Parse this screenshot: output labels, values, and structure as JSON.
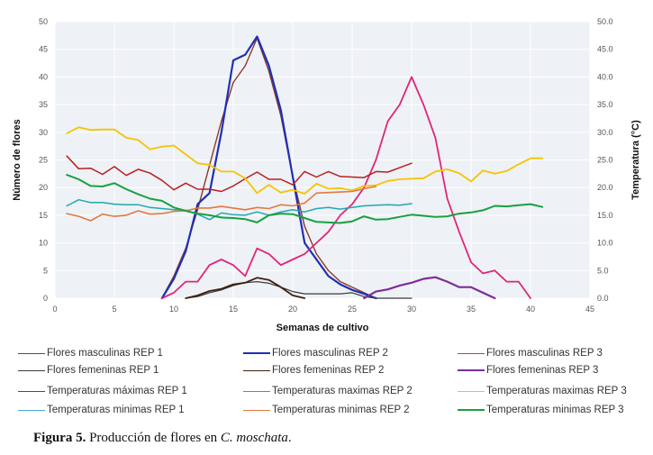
{
  "chart_data": {
    "type": "line",
    "xlabel": "Semanas de cultivo",
    "ylabel_left": "Número de flores",
    "ylabel_right": "Temperatura (°C)",
    "xlim": [
      0,
      45
    ],
    "xticks": [
      0,
      5,
      10,
      15,
      20,
      25,
      30,
      35,
      40,
      45
    ],
    "ylim_left": [
      0,
      50
    ],
    "yticks_left": [
      0,
      5,
      10,
      15,
      20,
      25,
      30,
      35,
      40,
      45,
      50
    ],
    "ylim_right": [
      0,
      50
    ],
    "yticks_right": [
      "0.0",
      "5.0",
      "10.0",
      "15.0",
      "20.0",
      "25.0",
      "30.0",
      "35.0",
      "40.0",
      "45.0",
      "50.0"
    ],
    "grid": true,
    "legend_placement": "bottom",
    "series": [
      {
        "name": "Flores masculinas REP 1",
        "color": "#8b3a2a",
        "width": 1.4,
        "x": [
          9,
          10,
          11,
          12,
          13,
          14,
          15,
          16,
          17,
          18,
          19,
          20,
          21,
          22,
          23,
          24,
          25,
          26,
          27
        ],
        "y": [
          0,
          4,
          9,
          16,
          24,
          32,
          39,
          42,
          47,
          41,
          33,
          22,
          13,
          8,
          5,
          3,
          2,
          1,
          0
        ]
      },
      {
        "name": "Flores masculinas REP 2",
        "color": "#1f2fb5",
        "width": 2.2,
        "x": [
          9,
          10,
          11,
          12,
          13,
          14,
          15,
          16,
          17,
          18,
          19,
          20,
          21,
          22,
          23,
          24,
          25,
          26,
          27
        ],
        "y": [
          0,
          3.5,
          8.5,
          17,
          19,
          30,
          43,
          44,
          47.3,
          42,
          34,
          22,
          10,
          7,
          4,
          2.5,
          1.5,
          0.8,
          0
        ]
      },
      {
        "name": "Flores masculinas REP 3",
        "color": "#e0257a",
        "width": 1.8,
        "x": [
          9,
          10,
          11,
          12,
          13,
          14,
          15,
          16,
          17,
          18,
          19,
          20,
          21,
          22,
          23,
          24,
          25,
          26,
          27,
          28,
          29,
          30,
          31,
          32,
          33,
          34,
          35,
          36,
          37,
          38,
          39,
          40
        ],
        "y": [
          0,
          1,
          3,
          3,
          6,
          7,
          6,
          4,
          9,
          8,
          6,
          7,
          8,
          10,
          12,
          15,
          17,
          20,
          25,
          32,
          35,
          40,
          35,
          29,
          18,
          12,
          6.5,
          4.5,
          5,
          3,
          3,
          0
        ]
      },
      {
        "name": "Flores femeninas REP 1",
        "color": "#3a3a3a",
        "width": 1.2,
        "x": [
          11,
          12,
          13,
          14,
          15,
          16,
          17,
          18,
          19,
          20,
          21,
          22,
          23,
          24,
          25,
          26,
          27,
          28,
          29,
          30
        ],
        "y": [
          0,
          0.3,
          1,
          1.5,
          2.3,
          2.8,
          3,
          2.7,
          2,
          1.2,
          0.8,
          0.8,
          0.8,
          0.8,
          1,
          0.3,
          0,
          0,
          0,
          0
        ]
      },
      {
        "name": "Flores femeninas REP 2",
        "color": "#3e2010",
        "width": 1.8,
        "x": [
          11,
          12,
          13,
          14,
          15,
          16,
          17,
          18,
          19,
          20,
          21
        ],
        "y": [
          0,
          0.5,
          1.3,
          1.7,
          2.5,
          2.8,
          3.7,
          3.3,
          2,
          0.5,
          0
        ]
      },
      {
        "name": "Flores femeninas REP 3",
        "color": "#7b2e99",
        "width": 2.2,
        "x": [
          26,
          27,
          28,
          29,
          30,
          31,
          32,
          33,
          34,
          35,
          36,
          37
        ],
        "y": [
          0,
          1.2,
          1.6,
          2.3,
          2.8,
          3.5,
          3.8,
          3,
          2,
          2,
          1,
          0
        ]
      },
      {
        "name": "Temperaturas máximas REP 1",
        "color": "#b82020",
        "width": 1.5,
        "x": [
          1,
          2,
          3,
          4,
          5,
          6,
          7,
          8,
          9,
          10,
          11,
          12,
          13,
          14,
          15,
          16,
          17,
          18,
          19,
          20,
          21,
          22,
          23,
          24,
          25,
          26,
          27,
          28,
          29,
          30
        ],
        "y": [
          25.7,
          23.4,
          23.5,
          22.4,
          23.8,
          22.2,
          23.3,
          22.6,
          21.3,
          19.6,
          20.8,
          19.7,
          19.7,
          19.3,
          20.3,
          21.6,
          22.8,
          21.5,
          21.5,
          20.5,
          22.9,
          21.9,
          22.9,
          22.0,
          21.9,
          21.8,
          22.9,
          22.8,
          23.6,
          24.4
        ]
      },
      {
        "name": "Temperaturas maximas REP 2",
        "color": "#20a8b0",
        "width": 1.5,
        "x": [
          1,
          2,
          3,
          4,
          5,
          6,
          7,
          8,
          9,
          10,
          11,
          12,
          13,
          14,
          15,
          16,
          17,
          18,
          19,
          20,
          21,
          22,
          23,
          24,
          25,
          26,
          27,
          28,
          29,
          30
        ],
        "y": [
          16.7,
          17.8,
          17.3,
          17.3,
          17.0,
          16.9,
          16.9,
          16.4,
          16.2,
          16.0,
          15.9,
          15.2,
          14.2,
          15.4,
          15.1,
          15.0,
          15.6,
          15.0,
          15.6,
          16.0,
          15.6,
          16.2,
          16.4,
          16.1,
          16.4,
          16.7,
          16.8,
          16.9,
          16.8,
          17.1
        ]
      },
      {
        "name": "Temperaturas maximas REP 3",
        "color": "#f5c400",
        "width": 1.8,
        "x": [
          1,
          2,
          3,
          4,
          5,
          6,
          7,
          8,
          9,
          10,
          11,
          12,
          13,
          14,
          15,
          16,
          17,
          18,
          19,
          20,
          21,
          22,
          23,
          24,
          25,
          26,
          27,
          28,
          29,
          30,
          31,
          32,
          33,
          34,
          35,
          36,
          37,
          38,
          39,
          40,
          41
        ],
        "y": [
          29.8,
          30.9,
          30.4,
          30.5,
          30.5,
          29.0,
          28.6,
          26.9,
          27.4,
          27.6,
          26.0,
          24.4,
          24.1,
          22.9,
          22.9,
          21.7,
          19.0,
          20.5,
          19.1,
          19.6,
          18.9,
          20.7,
          19.8,
          19.9,
          19.5,
          20.3,
          20.4,
          21.2,
          21.5,
          21.6,
          21.7,
          22.9,
          23.3,
          22.6,
          21.1,
          23.1,
          22.5,
          23.0,
          24.2,
          25.3,
          25.3
        ]
      },
      {
        "name": "Temperaturas minimas REP 1",
        "color": "#4aaad8",
        "width": 1.3,
        "x": [],
        "y": []
      },
      {
        "name": "Temperaturas minimas REP 2",
        "color": "#e07a40",
        "width": 1.6,
        "x": [
          1,
          2,
          3,
          4,
          5,
          6,
          7,
          8,
          9,
          10,
          11,
          12,
          13,
          14,
          15,
          16,
          17,
          18,
          19,
          20,
          21,
          22,
          23,
          24,
          25,
          26,
          27
        ],
        "y": [
          15.3,
          14.8,
          14.0,
          15.2,
          14.8,
          15.0,
          15.8,
          15.2,
          15.3,
          15.7,
          15.8,
          16.3,
          16.3,
          16.6,
          16.3,
          16.0,
          16.4,
          16.2,
          16.9,
          16.7,
          17.2,
          19.0,
          19.1,
          19.2,
          19.3,
          19.8,
          20.2
        ]
      },
      {
        "name": "Temperaturas minimas REP 3",
        "color": "#18a040",
        "width": 2.0,
        "x": [
          1,
          2,
          3,
          4,
          5,
          6,
          7,
          8,
          9,
          10,
          11,
          12,
          13,
          14,
          15,
          16,
          17,
          18,
          19,
          20,
          21,
          22,
          23,
          24,
          25,
          26,
          27,
          28,
          29,
          30,
          31,
          32,
          33,
          34,
          35,
          36,
          37,
          38,
          39,
          40,
          41
        ],
        "y": [
          22.3,
          21.5,
          20.3,
          20.2,
          20.8,
          19.7,
          18.8,
          18.0,
          17.6,
          16.4,
          15.8,
          15.3,
          15.0,
          14.6,
          14.5,
          14.3,
          13.7,
          15.0,
          15.3,
          15.2,
          14.5,
          13.8,
          13.7,
          13.6,
          13.9,
          14.8,
          14.2,
          14.3,
          14.7,
          15.1,
          14.9,
          14.7,
          14.8,
          15.3,
          15.5,
          15.9,
          16.7,
          16.6,
          16.8,
          17.0,
          16.5
        ]
      }
    ]
  },
  "legend": [
    {
      "label": "Flores masculinas REP 1",
      "color": "#8b3a2a",
      "width": 1.4
    },
    {
      "label": "Flores masculinas REP 2",
      "color": "#1f2fb5",
      "width": 2.2
    },
    {
      "label": "Flores masculinas REP 3",
      "color": "#e0257a",
      "width": 1.8
    },
    {
      "label": "Flores femeninas REP 1",
      "color": "#3a3a3a",
      "width": 1.2
    },
    {
      "label": "Flores femeninas REP 2",
      "color": "#3e2010",
      "width": 1.8
    },
    {
      "label": "Flores femeninas REP 3",
      "color": "#7b2e99",
      "width": 2.2
    },
    {
      "label": "Temperaturas máximas REP 1",
      "color": "#b82020",
      "width": 1.5
    },
    {
      "label": "Temperaturas maximas REP 2",
      "color": "#20a8b0",
      "width": 1.5
    },
    {
      "label": "Temperaturas maximas REP 3",
      "color": "#f5c400",
      "width": 1.8
    },
    {
      "label": "Temperaturas minimas REP 1",
      "color": "#4aaad8",
      "width": 1.3
    },
    {
      "label": "Temperaturas minimas REP 2",
      "color": "#e07a40",
      "width": 1.6
    },
    {
      "label": "Temperaturas minimas REP 3",
      "color": "#18a040",
      "width": 2.0
    }
  ],
  "caption": {
    "label": "Figura 5.",
    "text": " Producción de flores en ",
    "species": "C. moschata",
    "end": "."
  }
}
